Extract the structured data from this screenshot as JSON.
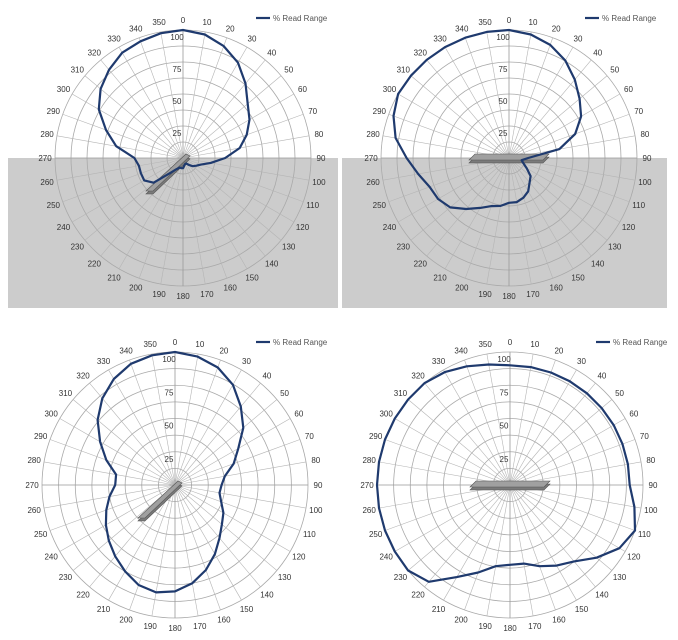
{
  "chart_data": [
    {
      "type": "polar-line",
      "legend": "% Read Range",
      "legend_position": "top-right",
      "radial_range": [
        0,
        100
      ],
      "radial_ticks": [
        25,
        50,
        75,
        100
      ],
      "angle_ticks": [
        "0",
        "10",
        "20",
        "30",
        "40",
        "50",
        "60",
        "70",
        "80",
        "90",
        "100",
        "110",
        "120",
        "130",
        "140",
        "150",
        "160",
        "170",
        "180",
        "190",
        "200",
        "210",
        "220",
        "230",
        "240",
        "250",
        "260",
        "270",
        "280",
        "290",
        "300",
        "310",
        "320",
        "330",
        "340",
        "350"
      ],
      "shaded_lower_half": true,
      "tag_orientation": "diagonal",
      "series": [
        {
          "name": "% Read Range",
          "angles": [
            0,
            10,
            20,
            30,
            40,
            50,
            60,
            70,
            80,
            90,
            100,
            110,
            120,
            130,
            140,
            150,
            160,
            170,
            180,
            190,
            200,
            210,
            220,
            230,
            240,
            250,
            260,
            270,
            280,
            290,
            300,
            310,
            320,
            330,
            340,
            350
          ],
          "values": [
            100,
            98,
            93,
            86,
            76,
            66,
            60,
            53,
            45,
            33,
            22,
            15,
            12,
            10,
            7,
            5,
            5,
            6,
            8,
            8,
            8,
            10,
            15,
            30,
            35,
            35,
            35,
            38,
            53,
            64,
            76,
            84,
            90,
            95,
            97,
            99
          ]
        }
      ]
    },
    {
      "type": "polar-line",
      "legend": "% Read Range",
      "legend_position": "top-right",
      "radial_range": [
        0,
        100
      ],
      "radial_ticks": [
        25,
        50,
        75,
        100
      ],
      "angle_ticks": [
        "0",
        "10",
        "20",
        "30",
        "40",
        "50",
        "60",
        "70",
        "80",
        "90",
        "100",
        "110",
        "120",
        "130",
        "140",
        "150",
        "160",
        "170",
        "180",
        "190",
        "200",
        "210",
        "220",
        "230",
        "240",
        "250",
        "260",
        "270",
        "280",
        "290",
        "300",
        "310",
        "320",
        "330",
        "340",
        "350"
      ],
      "shaded_lower_half": true,
      "tag_orientation": "horizontal",
      "series": [
        {
          "name": "% Read Range",
          "angles": [
            0,
            10,
            20,
            30,
            40,
            50,
            60,
            70,
            80,
            90,
            100,
            110,
            120,
            130,
            140,
            150,
            160,
            170,
            180,
            190,
            200,
            210,
            220,
            230,
            240,
            250,
            260,
            270,
            280,
            290,
            300,
            310,
            320,
            330,
            340,
            350
          ],
          "values": [
            100,
            98,
            94,
            88,
            80,
            72,
            65,
            55,
            40,
            15,
            10,
            12,
            16,
            22,
            25,
            30,
            33,
            35,
            35,
            38,
            40,
            45,
            52,
            60,
            64,
            66,
            72,
            80,
            90,
            96,
            100,
            100,
            100,
            100,
            100,
            100
          ]
        }
      ]
    },
    {
      "type": "polar-line",
      "legend": "% Read Range",
      "legend_position": "top-right",
      "radial_range": [
        0,
        100
      ],
      "radial_ticks": [
        25,
        50,
        75,
        100
      ],
      "angle_ticks": [
        "0",
        "10",
        "20",
        "30",
        "40",
        "50",
        "60",
        "70",
        "80",
        "90",
        "100",
        "110",
        "120",
        "130",
        "140",
        "150",
        "160",
        "170",
        "180",
        "190",
        "200",
        "210",
        "220",
        "230",
        "240",
        "250",
        "260",
        "270",
        "280",
        "290",
        "300",
        "310",
        "320",
        "330",
        "340",
        "350"
      ],
      "shaded_lower_half": false,
      "tag_orientation": "diagonal",
      "series": [
        {
          "name": "% Read Range",
          "angles": [
            0,
            10,
            20,
            30,
            40,
            50,
            60,
            70,
            80,
            90,
            100,
            110,
            120,
            130,
            140,
            150,
            160,
            170,
            180,
            190,
            200,
            210,
            220,
            230,
            240,
            250,
            260,
            270,
            280,
            290,
            300,
            310,
            320,
            330,
            340,
            350
          ],
          "values": [
            100,
            98,
            94,
            87,
            77,
            67,
            55,
            47,
            38,
            35,
            34,
            37,
            42,
            46,
            52,
            60,
            68,
            75,
            80,
            82,
            80,
            75,
            70,
            65,
            60,
            55,
            50,
            45,
            45,
            55,
            65,
            76,
            85,
            92,
            97,
            99
          ]
        }
      ]
    },
    {
      "type": "polar-line",
      "legend": "% Read Range",
      "legend_position": "top-right",
      "radial_range": [
        0,
        100
      ],
      "radial_ticks": [
        25,
        50,
        75,
        100
      ],
      "angle_ticks": [
        "0",
        "10",
        "20",
        "30",
        "40",
        "50",
        "60",
        "70",
        "80",
        "90",
        "100",
        "110",
        "120",
        "130",
        "140",
        "150",
        "160",
        "170",
        "180",
        "190",
        "200",
        "210",
        "220",
        "230",
        "240",
        "250",
        "260",
        "270",
        "280",
        "290",
        "300",
        "310",
        "320",
        "330",
        "340",
        "350"
      ],
      "shaded_lower_half": false,
      "tag_orientation": "horizontal",
      "series": [
        {
          "name": "% Read Range",
          "angles": [
            0,
            10,
            20,
            30,
            40,
            50,
            60,
            70,
            80,
            90,
            100,
            110,
            120,
            130,
            140,
            150,
            160,
            170,
            180,
            190,
            200,
            210,
            220,
            230,
            240,
            250,
            260,
            270,
            280,
            290,
            300,
            310,
            320,
            330,
            340,
            350
          ],
          "values": [
            90,
            90,
            90,
            90,
            90,
            90,
            90,
            90,
            90,
            90,
            95,
            100,
            95,
            85,
            75,
            70,
            65,
            60,
            60,
            62,
            70,
            80,
            95,
            100,
            100,
            100,
            100,
            100,
            100,
            100,
            100,
            100,
            100,
            98,
            95,
            92
          ]
        }
      ]
    }
  ]
}
